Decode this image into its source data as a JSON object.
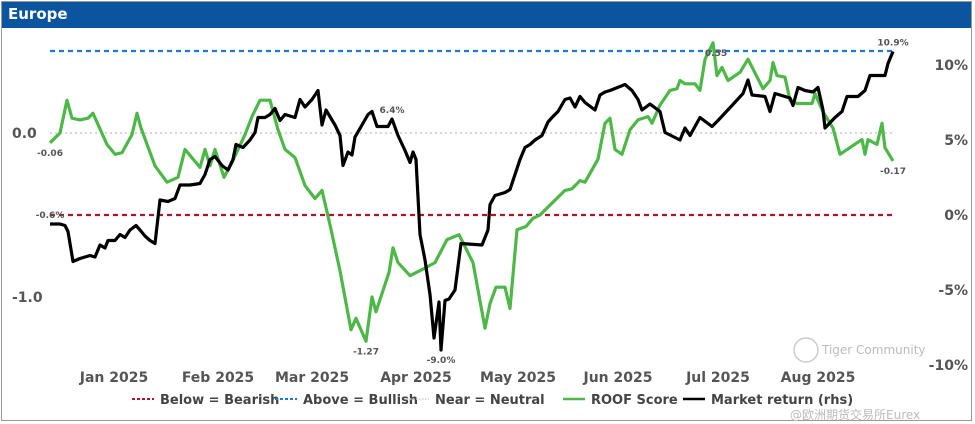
{
  "title": "Europe",
  "chart_data": {
    "type": "line",
    "title": "Europe",
    "x_unit": "month of 2025 (1 = Jan label)",
    "x_ticks": [
      {
        "label": "Jan 2025",
        "m": 1.0
      },
      {
        "label": "Feb 2025",
        "m": 2.04
      },
      {
        "label": "Mar 2025",
        "m": 2.98
      },
      {
        "label": "Apr 2025",
        "m": 4.02
      },
      {
        "label": "May 2025",
        "m": 5.04
      },
      {
        "label": "Jun 2025",
        "m": 6.04
      },
      {
        "label": "Jul 2025",
        "m": 7.04
      },
      {
        "label": "Aug 2025",
        "m": 8.04
      }
    ],
    "xlim": [
      0.36,
      8.79
    ],
    "left_axis": {
      "ylim": [
        -1.42,
        0.62
      ],
      "ticks": [
        {
          "label": "0.0",
          "v": 0
        },
        {
          "label": "-1.0",
          "v": -1
        }
      ]
    },
    "right_axis": {
      "ylim": [
        -10.2,
        10.9
      ],
      "ticks": [
        {
          "label": "10%",
          "v": 10
        },
        {
          "label": "5%",
          "v": 5
        },
        {
          "label": "0%",
          "v": 0
        },
        {
          "label": "-5%",
          "v": -5
        },
        {
          "label": "-10%",
          "v": -10
        }
      ]
    },
    "reference_lines": [
      {
        "name": "Below = Bearish",
        "value": -0.5,
        "color": "#b0142a"
      },
      {
        "name": "Above = Bullish",
        "value": 0.5,
        "color": "#1a7ad4"
      },
      {
        "name": "Near = Neutral",
        "value": 0,
        "color": "#c8c8c8"
      }
    ],
    "series": [
      {
        "name": "ROOF Score",
        "axis": "left",
        "color": "#4db848",
        "points": [
          [
            0.36,
            -0.06
          ],
          [
            0.46,
            0.0
          ],
          [
            0.53,
            0.2
          ],
          [
            0.58,
            0.09
          ],
          [
            0.66,
            0.08
          ],
          [
            0.74,
            0.09
          ],
          [
            0.79,
            0.12
          ],
          [
            0.93,
            -0.07
          ],
          [
            1.01,
            -0.13
          ],
          [
            1.08,
            -0.12
          ],
          [
            1.18,
            -0.01
          ],
          [
            1.23,
            0.12
          ],
          [
            1.27,
            0.03
          ],
          [
            1.41,
            -0.2
          ],
          [
            1.53,
            -0.3
          ],
          [
            1.64,
            -0.27
          ],
          [
            1.71,
            -0.1
          ],
          [
            1.86,
            -0.21
          ],
          [
            1.91,
            -0.1
          ],
          [
            1.96,
            -0.2
          ],
          [
            2.01,
            -0.1
          ],
          [
            2.1,
            -0.27
          ],
          [
            2.18,
            -0.18
          ],
          [
            2.31,
            -0.01
          ],
          [
            2.38,
            0.1
          ],
          [
            2.46,
            0.2
          ],
          [
            2.56,
            0.2
          ],
          [
            2.64,
            0.02
          ],
          [
            2.71,
            -0.1
          ],
          [
            2.81,
            -0.15
          ],
          [
            2.91,
            -0.32
          ],
          [
            3.01,
            -0.4
          ],
          [
            3.08,
            -0.35
          ],
          [
            3.16,
            -0.56
          ],
          [
            3.26,
            -0.84
          ],
          [
            3.37,
            -1.2
          ],
          [
            3.42,
            -1.13
          ],
          [
            3.52,
            -1.27
          ],
          [
            3.58,
            -1.0
          ],
          [
            3.62,
            -1.09
          ],
          [
            3.75,
            -0.85
          ],
          [
            3.79,
            -0.7
          ],
          [
            3.84,
            -0.79
          ],
          [
            3.96,
            -0.87
          ],
          [
            4.09,
            -0.83
          ],
          [
            4.21,
            -0.79
          ],
          [
            4.33,
            -0.65
          ],
          [
            4.45,
            -0.62
          ],
          [
            4.59,
            -0.79
          ],
          [
            4.71,
            -1.19
          ],
          [
            4.76,
            -1.04
          ],
          [
            4.82,
            -0.94
          ],
          [
            4.91,
            -0.94
          ],
          [
            4.96,
            -1.07
          ],
          [
            5.03,
            -0.59
          ],
          [
            5.12,
            -0.57
          ],
          [
            5.19,
            -0.52
          ],
          [
            5.26,
            -0.5
          ],
          [
            5.41,
            -0.41
          ],
          [
            5.51,
            -0.35
          ],
          [
            5.58,
            -0.34
          ],
          [
            5.66,
            -0.29
          ],
          [
            5.71,
            -0.3
          ],
          [
            5.84,
            -0.16
          ],
          [
            5.91,
            0.06
          ],
          [
            5.96,
            0.09
          ],
          [
            6.01,
            -0.1
          ],
          [
            6.08,
            -0.13
          ],
          [
            6.16,
            0.02
          ],
          [
            6.24,
            0.08
          ],
          [
            6.34,
            0.1
          ],
          [
            6.38,
            0.06
          ],
          [
            6.46,
            0.17
          ],
          [
            6.56,
            0.26
          ],
          [
            6.63,
            0.27
          ],
          [
            6.66,
            0.32
          ],
          [
            6.71,
            0.3
          ],
          [
            6.81,
            0.3
          ],
          [
            6.86,
            0.26
          ],
          [
            6.91,
            0.45
          ],
          [
            6.99,
            0.55
          ],
          [
            7.03,
            0.35
          ],
          [
            7.08,
            0.4
          ],
          [
            7.14,
            0.32
          ],
          [
            7.26,
            0.37
          ],
          [
            7.34,
            0.45
          ],
          [
            7.49,
            0.27
          ],
          [
            7.56,
            0.32
          ],
          [
            7.59,
            0.43
          ],
          [
            7.63,
            0.35
          ],
          [
            7.71,
            0.34
          ],
          [
            7.76,
            0.2
          ],
          [
            7.83,
            0.18
          ],
          [
            7.98,
            0.18
          ],
          [
            8.01,
            0.24
          ],
          [
            8.09,
            0.13
          ],
          [
            8.19,
            0.03
          ],
          [
            8.26,
            -0.13
          ],
          [
            8.43,
            -0.06
          ],
          [
            8.48,
            -0.04
          ],
          [
            8.51,
            -0.13
          ],
          [
            8.54,
            -0.04
          ],
          [
            8.63,
            -0.07
          ],
          [
            8.68,
            0.06
          ],
          [
            8.71,
            -0.09
          ],
          [
            8.79,
            -0.17
          ]
        ]
      },
      {
        "name": "Market return (rhs)",
        "axis": "right",
        "color": "#000000",
        "points": [
          [
            0.36,
            -0.6
          ],
          [
            0.46,
            -0.6
          ],
          [
            0.51,
            -0.7
          ],
          [
            0.54,
            -1.1
          ],
          [
            0.59,
            -3.1
          ],
          [
            0.66,
            -2.9
          ],
          [
            0.76,
            -2.7
          ],
          [
            0.81,
            -2.8
          ],
          [
            0.86,
            -2.0
          ],
          [
            0.91,
            -2.2
          ],
          [
            0.94,
            -1.7
          ],
          [
            1.01,
            -1.7
          ],
          [
            1.06,
            -1.3
          ],
          [
            1.11,
            -1.5
          ],
          [
            1.16,
            -1.0
          ],
          [
            1.22,
            -0.7
          ],
          [
            1.26,
            -1.0
          ],
          [
            1.31,
            -1.4
          ],
          [
            1.36,
            -1.7
          ],
          [
            1.41,
            -1.9
          ],
          [
            1.46,
            1.0
          ],
          [
            1.54,
            0.9
          ],
          [
            1.61,
            1.1
          ],
          [
            1.66,
            2.0
          ],
          [
            1.76,
            2.0
          ],
          [
            1.86,
            2.1
          ],
          [
            1.91,
            2.7
          ],
          [
            1.96,
            3.7
          ],
          [
            2.01,
            3.9
          ],
          [
            2.08,
            3.3
          ],
          [
            2.14,
            3.0
          ],
          [
            2.19,
            3.7
          ],
          [
            2.22,
            4.7
          ],
          [
            2.29,
            4.5
          ],
          [
            2.36,
            5.0
          ],
          [
            2.41,
            5.5
          ],
          [
            2.44,
            6.5
          ],
          [
            2.51,
            6.5
          ],
          [
            2.56,
            6.7
          ],
          [
            2.61,
            7.1
          ],
          [
            2.66,
            6.3
          ],
          [
            2.71,
            6.7
          ],
          [
            2.81,
            6.5
          ],
          [
            2.86,
            7.7
          ],
          [
            2.91,
            7.2
          ],
          [
            2.98,
            7.7
          ],
          [
            3.04,
            8.3
          ],
          [
            3.08,
            6.0
          ],
          [
            3.12,
            7.0
          ],
          [
            3.21,
            6.0
          ],
          [
            3.26,
            5.3
          ],
          [
            3.29,
            3.3
          ],
          [
            3.34,
            4.2
          ],
          [
            3.38,
            4.0
          ],
          [
            3.41,
            5.2
          ],
          [
            3.48,
            6.0
          ],
          [
            3.54,
            6.7
          ],
          [
            3.58,
            6.9
          ],
          [
            3.63,
            5.9
          ],
          [
            3.74,
            5.9
          ],
          [
            3.78,
            6.4
          ],
          [
            3.84,
            5.3
          ],
          [
            3.91,
            4.3
          ],
          [
            3.96,
            3.5
          ],
          [
            3.99,
            4.2
          ],
          [
            4.02,
            3.7
          ],
          [
            4.06,
            -1.3
          ],
          [
            4.11,
            -3.0
          ],
          [
            4.16,
            -5.3
          ],
          [
            4.2,
            -8.2
          ],
          [
            4.25,
            -5.8
          ],
          [
            4.27,
            -9.0
          ],
          [
            4.31,
            -5.7
          ],
          [
            4.35,
            -5.6
          ],
          [
            4.41,
            -5.0
          ],
          [
            4.47,
            -1.9
          ],
          [
            4.68,
            -2.0
          ],
          [
            4.74,
            -1.0
          ],
          [
            4.76,
            0.7
          ],
          [
            4.81,
            1.3
          ],
          [
            4.91,
            1.5
          ],
          [
            4.96,
            1.7
          ],
          [
            5.01,
            2.7
          ],
          [
            5.06,
            3.7
          ],
          [
            5.11,
            4.5
          ],
          [
            5.16,
            4.7
          ],
          [
            5.21,
            5.0
          ],
          [
            5.28,
            5.3
          ],
          [
            5.34,
            6.2
          ],
          [
            5.38,
            6.5
          ],
          [
            5.44,
            6.9
          ],
          [
            5.51,
            7.7
          ],
          [
            5.56,
            7.8
          ],
          [
            5.61,
            7.2
          ],
          [
            5.66,
            7.9
          ],
          [
            5.71,
            7.5
          ],
          [
            5.81,
            7.0
          ],
          [
            5.86,
            8.0
          ],
          [
            5.91,
            8.2
          ],
          [
            5.96,
            8.3
          ],
          [
            6.11,
            8.7
          ],
          [
            6.18,
            8.3
          ],
          [
            6.24,
            7.7
          ],
          [
            6.28,
            7.0
          ],
          [
            6.36,
            7.4
          ],
          [
            6.46,
            6.9
          ],
          [
            6.51,
            5.5
          ],
          [
            6.66,
            5.0
          ],
          [
            6.71,
            5.8
          ],
          [
            6.76,
            5.3
          ],
          [
            6.86,
            6.5
          ],
          [
            6.98,
            5.9
          ],
          [
            7.04,
            6.3
          ],
          [
            7.18,
            7.3
          ],
          [
            7.29,
            8.1
          ],
          [
            7.34,
            9.0
          ],
          [
            7.38,
            8.0
          ],
          [
            7.51,
            7.9
          ],
          [
            7.56,
            6.9
          ],
          [
            7.61,
            8.1
          ],
          [
            7.76,
            7.8
          ],
          [
            7.79,
            7.3
          ],
          [
            7.84,
            8.5
          ],
          [
            7.91,
            8.3
          ],
          [
            7.99,
            8.2
          ],
          [
            8.04,
            8.5
          ],
          [
            8.09,
            7.0
          ],
          [
            8.11,
            5.8
          ],
          [
            8.21,
            6.5
          ],
          [
            8.28,
            6.9
          ],
          [
            8.33,
            7.9
          ],
          [
            8.44,
            7.9
          ],
          [
            8.51,
            8.3
          ],
          [
            8.56,
            9.3
          ],
          [
            8.71,
            9.3
          ],
          [
            8.74,
            10.1
          ],
          [
            8.79,
            10.9
          ]
        ]
      }
    ],
    "annotations": [
      {
        "text": "-0.06",
        "series": "ROOF Score",
        "m": 0.36,
        "v": -0.06,
        "pos": "below"
      },
      {
        "text": "-1.27",
        "series": "ROOF Score",
        "m": 3.52,
        "v": -1.27,
        "pos": "below"
      },
      {
        "text": "0.55",
        "series": "ROOF Score",
        "m": 7.02,
        "v": 0.55,
        "pos": "below"
      },
      {
        "text": "-0.17",
        "series": "ROOF Score",
        "m": 8.79,
        "v": -0.17,
        "pos": "below"
      },
      {
        "text": "-0.6%",
        "series": "Market return (rhs)",
        "m": 0.36,
        "v": -0.6,
        "pos": "above"
      },
      {
        "text": "6.4%",
        "series": "Market return (rhs)",
        "m": 3.78,
        "v": 6.4,
        "pos": "above"
      },
      {
        "text": "-9.0%",
        "series": "Market return (rhs)",
        "m": 4.27,
        "v": -9.0,
        "pos": "below"
      },
      {
        "text": "10.9%",
        "series": "Market return (rhs)",
        "m": 8.79,
        "v": 10.9,
        "pos": "above"
      }
    ],
    "legend": {
      "placement": "bottom",
      "items": [
        "Below = Bearish",
        "Above = Bullish",
        "Near = Neutral",
        "ROOF Score",
        "Market return (rhs)"
      ]
    }
  },
  "watermark": {
    "line1": "Tiger Community",
    "line2": "@欧洲期货交易所Eurex"
  }
}
